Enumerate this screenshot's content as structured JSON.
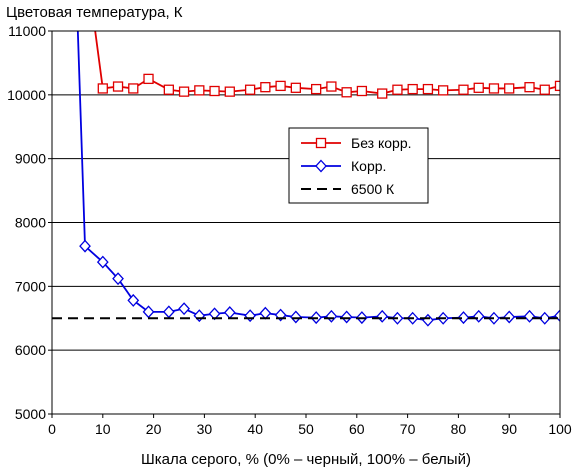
{
  "chart_data": {
    "type": "line",
    "title": "Цветовая температура, К",
    "xlabel": "Шкала серого, % (0% – черный, 100% – белый)",
    "ylabel": "",
    "xlim": [
      0,
      100
    ],
    "ylim": [
      5000,
      11000
    ],
    "x_ticks": [
      0,
      10,
      20,
      30,
      40,
      50,
      60,
      70,
      80,
      90,
      100
    ],
    "y_ticks": [
      5000,
      6000,
      7000,
      8000,
      9000,
      10000,
      11000
    ],
    "grid": "horizontal",
    "legend_position": "center-right",
    "series": [
      {
        "name": "Без корр.",
        "color": "#e00000",
        "marker": "square",
        "line_style": "solid",
        "x": [
          8,
          10,
          13,
          16,
          19,
          23,
          26,
          29,
          32,
          35,
          39,
          42,
          45,
          48,
          52,
          55,
          58,
          61,
          65,
          68,
          71,
          74,
          77,
          81,
          84,
          87,
          90,
          94,
          97,
          100
        ],
        "y": [
          11300,
          10100,
          10130,
          10100,
          10250,
          10080,
          10050,
          10070,
          10060,
          10050,
          10080,
          10120,
          10140,
          10110,
          10090,
          10130,
          10040,
          10060,
          10020,
          10080,
          10090,
          10090,
          10070,
          10080,
          10110,
          10100,
          10100,
          10120,
          10080,
          10140
        ]
      },
      {
        "name": "Корр.",
        "color": "#0000e0",
        "marker": "diamond",
        "line_style": "solid",
        "x": [
          5,
          6.5,
          10,
          13,
          16,
          19,
          23,
          26,
          29,
          32,
          35,
          39,
          42,
          45,
          48,
          52,
          55,
          58,
          61,
          65,
          68,
          71,
          74,
          77,
          81,
          84,
          87,
          90,
          94,
          97,
          100
        ],
        "y": [
          11200,
          7630,
          7380,
          7120,
          6780,
          6600,
          6600,
          6650,
          6540,
          6570,
          6590,
          6540,
          6580,
          6550,
          6520,
          6510,
          6530,
          6520,
          6510,
          6530,
          6500,
          6500,
          6470,
          6500,
          6510,
          6530,
          6500,
          6520,
          6530,
          6500,
          6540
        ]
      },
      {
        "name": "6500 К",
        "color": "#000000",
        "marker": "none",
        "line_style": "dashed",
        "x": [
          0,
          100
        ],
        "y": [
          6500,
          6500
        ]
      }
    ]
  }
}
